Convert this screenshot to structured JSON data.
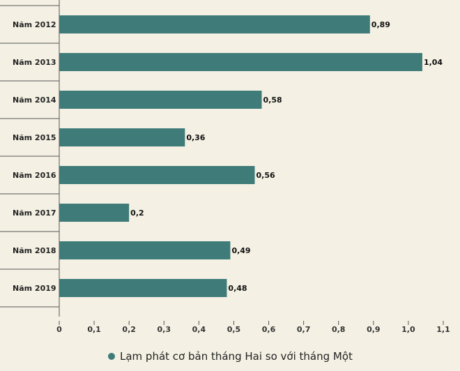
{
  "chart_data": {
    "type": "bar",
    "orientation": "horizontal",
    "categories": [
      "Năm 2012",
      "Năm 2013",
      "Năm 2014",
      "Năm 2015",
      "Năm 2016",
      "Năm 2017",
      "Năm 2018",
      "Năm 2019"
    ],
    "values": [
      0.89,
      1.04,
      0.58,
      0.36,
      0.56,
      0.2,
      0.49,
      0.48
    ],
    "value_labels": [
      "0,89",
      "1,04",
      "0,58",
      "0,36",
      "0,56",
      "0,2",
      "0,49",
      "0,48"
    ],
    "series_name": "Lạm phát cơ bản tháng Hai so với tháng Một",
    "xlim": [
      0,
      1.1
    ],
    "xticks": [
      0,
      0.1,
      0.2,
      0.3,
      0.4,
      0.5,
      0.6,
      0.7,
      0.8,
      0.9,
      1.0,
      1.1
    ],
    "xtick_labels": [
      "0",
      "0,1",
      "0,2",
      "0,3",
      "0,4",
      "0,5",
      "0,6",
      "0,7",
      "0,8",
      "0,9",
      "1,0",
      "1,1"
    ],
    "legend_position": "bottom-center",
    "grid": false
  },
  "colors": {
    "background": "#f4f1e4",
    "bar": "#3f7c79",
    "axis": "#555555"
  }
}
